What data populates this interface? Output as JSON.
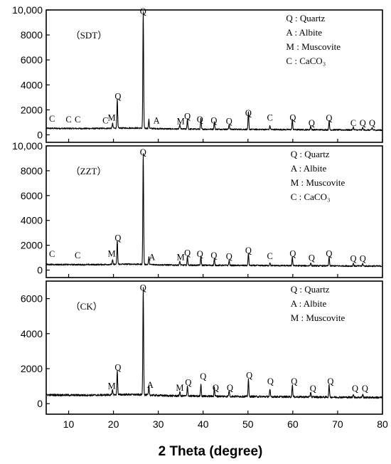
{
  "chart_data": {
    "type": "line",
    "xlabel": "2 Theta (degree)",
    "xlim": [
      5,
      80
    ],
    "x_ticks": [
      10,
      20,
      30,
      40,
      50,
      60,
      70,
      80
    ],
    "x_tick_labels": [
      "10",
      "20",
      "30",
      "40",
      "50",
      "60",
      "70",
      "80"
    ],
    "line_color": "#000000",
    "panels": [
      {
        "sample": "（SDT）",
        "ylim": [
          -600,
          10000
        ],
        "y_ticks": [
          0,
          2000,
          4000,
          6000,
          8000,
          10000
        ],
        "y_tick_labels": [
          "0",
          "2000",
          "4000",
          "6000",
          "8000",
          "10,000"
        ],
        "baseline": 520,
        "baseline_end": 380,
        "peaks": [
          {
            "x": 20.85,
            "y": 2300
          },
          {
            "x": 26.64,
            "y": 9400
          },
          {
            "x": 27.9,
            "y": 700
          },
          {
            "x": 36.5,
            "y": 800
          },
          {
            "x": 39.5,
            "y": 850
          },
          {
            "x": 42.5,
            "y": 600
          },
          {
            "x": 45.8,
            "y": 400
          },
          {
            "x": 50.1,
            "y": 1400
          },
          {
            "x": 54.9,
            "y": 300
          },
          {
            "x": 59.9,
            "y": 800
          },
          {
            "x": 64.0,
            "y": 300
          },
          {
            "x": 68.1,
            "y": 700
          },
          {
            "x": 73.5,
            "y": 250
          },
          {
            "x": 75.6,
            "y": 200
          },
          {
            "x": 77.7,
            "y": 200
          },
          {
            "x": 19.8,
            "y": 400
          },
          {
            "x": 34.8,
            "y": 350
          }
        ],
        "labels": [
          {
            "x": 6.3,
            "y": 1050,
            "text": "C"
          },
          {
            "x": 10.0,
            "y": 1000,
            "text": "C"
          },
          {
            "x": 12.0,
            "y": 1000,
            "text": "C"
          },
          {
            "x": 18.2,
            "y": 900,
            "text": "C"
          },
          {
            "x": 19.6,
            "y": 1150,
            "text": "M"
          },
          {
            "x": 21.0,
            "y": 2850,
            "text": "Q"
          },
          {
            "x": 26.6,
            "y": 9650,
            "text": "Q"
          },
          {
            "x": 29.6,
            "y": 900,
            "text": "A"
          },
          {
            "x": 35.0,
            "y": 850,
            "text": "M"
          },
          {
            "x": 36.5,
            "y": 1250,
            "text": "Q"
          },
          {
            "x": 39.3,
            "y": 1000,
            "text": "Q"
          },
          {
            "x": 42.4,
            "y": 900,
            "text": "Q"
          },
          {
            "x": 45.8,
            "y": 850,
            "text": "Q"
          },
          {
            "x": 50.1,
            "y": 1500,
            "text": "Q"
          },
          {
            "x": 54.9,
            "y": 1150,
            "text": "C"
          },
          {
            "x": 60.0,
            "y": 1150,
            "text": "Q"
          },
          {
            "x": 64.2,
            "y": 700,
            "text": "Q"
          },
          {
            "x": 68.1,
            "y": 1100,
            "text": "Q"
          },
          {
            "x": 73.5,
            "y": 700,
            "text": "C"
          },
          {
            "x": 75.6,
            "y": 700,
            "text": "Q"
          },
          {
            "x": 77.7,
            "y": 700,
            "text": "Q"
          }
        ],
        "legend": [
          "Q : Quartz",
          "A : Albite",
          "M : Muscovite",
          "C :  CaCO₃"
        ]
      },
      {
        "sample": "（ZZT）",
        "ylim": [
          -600,
          10000
        ],
        "y_ticks": [
          0,
          2000,
          4000,
          6000,
          8000,
          10000
        ],
        "y_tick_labels": [
          "0",
          "2000",
          "4000",
          "6000",
          "8000",
          "10,000"
        ],
        "baseline": 450,
        "baseline_end": 320,
        "peaks": [
          {
            "x": 20.85,
            "y": 1900
          },
          {
            "x": 26.64,
            "y": 9000
          },
          {
            "x": 27.9,
            "y": 600
          },
          {
            "x": 36.5,
            "y": 700
          },
          {
            "x": 39.5,
            "y": 700
          },
          {
            "x": 42.5,
            "y": 500
          },
          {
            "x": 45.8,
            "y": 400
          },
          {
            "x": 50.1,
            "y": 1000
          },
          {
            "x": 54.9,
            "y": 250
          },
          {
            "x": 59.9,
            "y": 700
          },
          {
            "x": 64.0,
            "y": 250
          },
          {
            "x": 68.1,
            "y": 700
          },
          {
            "x": 73.5,
            "y": 200
          },
          {
            "x": 75.6,
            "y": 200
          },
          {
            "x": 19.8,
            "y": 350
          },
          {
            "x": 34.8,
            "y": 300
          }
        ],
        "labels": [
          {
            "x": 6.3,
            "y": 1050,
            "text": "C"
          },
          {
            "x": 12.0,
            "y": 950,
            "text": "C"
          },
          {
            "x": 19.6,
            "y": 1100,
            "text": "M"
          },
          {
            "x": 21.0,
            "y": 2350,
            "text": "Q"
          },
          {
            "x": 26.6,
            "y": 9250,
            "text": "Q"
          },
          {
            "x": 28.6,
            "y": 800,
            "text": "A"
          },
          {
            "x": 35.0,
            "y": 800,
            "text": "M"
          },
          {
            "x": 36.5,
            "y": 1150,
            "text": "Q"
          },
          {
            "x": 39.3,
            "y": 1050,
            "text": "Q"
          },
          {
            "x": 42.4,
            "y": 950,
            "text": "Q"
          },
          {
            "x": 45.8,
            "y": 850,
            "text": "Q"
          },
          {
            "x": 50.1,
            "y": 1350,
            "text": "Q"
          },
          {
            "x": 54.9,
            "y": 900,
            "text": "C"
          },
          {
            "x": 60.0,
            "y": 1100,
            "text": "Q"
          },
          {
            "x": 64.2,
            "y": 750,
            "text": "Q"
          },
          {
            "x": 68.1,
            "y": 1100,
            "text": "Q"
          },
          {
            "x": 73.5,
            "y": 700,
            "text": "Q"
          },
          {
            "x": 75.6,
            "y": 700,
            "text": "Q"
          }
        ],
        "legend": [
          "Q : Quartz",
          "A : Albite",
          "M : Muscovite",
          "C :  CaCO₃"
        ]
      },
      {
        "sample": "（CK）",
        "ylim": [
          -600,
          7000
        ],
        "y_ticks": [
          0,
          2000,
          4000,
          6000
        ],
        "y_tick_labels": [
          "0",
          "2000",
          "4000",
          "6000"
        ],
        "baseline": 500,
        "baseline_end": 350,
        "peaks": [
          {
            "x": 20.85,
            "y": 1400
          },
          {
            "x": 26.64,
            "y": 6150
          },
          {
            "x": 27.9,
            "y": 500
          },
          {
            "x": 36.5,
            "y": 600
          },
          {
            "x": 39.5,
            "y": 700
          },
          {
            "x": 42.5,
            "y": 500
          },
          {
            "x": 45.8,
            "y": 350
          },
          {
            "x": 50.1,
            "y": 1000
          },
          {
            "x": 54.9,
            "y": 400
          },
          {
            "x": 59.9,
            "y": 700
          },
          {
            "x": 64.0,
            "y": 300
          },
          {
            "x": 68.1,
            "y": 700
          },
          {
            "x": 73.5,
            "y": 200
          },
          {
            "x": 75.6,
            "y": 200
          },
          {
            "x": 19.8,
            "y": 300
          },
          {
            "x": 34.8,
            "y": 250
          }
        ],
        "labels": [
          {
            "x": 19.6,
            "y": 850,
            "text": "M"
          },
          {
            "x": 21.0,
            "y": 1900,
            "text": "Q"
          },
          {
            "x": 26.6,
            "y": 6450,
            "text": "Q"
          },
          {
            "x": 28.2,
            "y": 900,
            "text": "A"
          },
          {
            "x": 34.8,
            "y": 750,
            "text": "M"
          },
          {
            "x": 36.7,
            "y": 1050,
            "text": "Q"
          },
          {
            "x": 40.0,
            "y": 1400,
            "text": "Q"
          },
          {
            "x": 42.8,
            "y": 750,
            "text": "Q"
          },
          {
            "x": 46.0,
            "y": 750,
            "text": "Q"
          },
          {
            "x": 50.3,
            "y": 1450,
            "text": "Q"
          },
          {
            "x": 55.0,
            "y": 1100,
            "text": "Q"
          },
          {
            "x": 60.3,
            "y": 1100,
            "text": "Q"
          },
          {
            "x": 64.5,
            "y": 700,
            "text": "Q"
          },
          {
            "x": 68.4,
            "y": 1100,
            "text": "Q"
          },
          {
            "x": 73.9,
            "y": 700,
            "text": "Q"
          },
          {
            "x": 76.1,
            "y": 700,
            "text": "Q"
          }
        ],
        "legend": [
          "Q : Quartz",
          "A : Albite",
          "M : Muscovite"
        ]
      }
    ]
  }
}
